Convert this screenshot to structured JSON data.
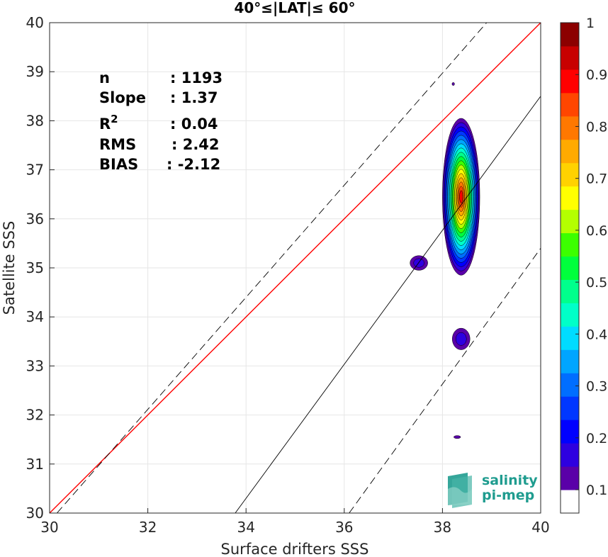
{
  "chart_data": {
    "type": "contour-density",
    "title": "40°≤|LAT|≤ 60°",
    "xlabel": "Surface drifters SSS",
    "ylabel": "Satellite SSS",
    "xlim": [
      30,
      40
    ],
    "ylim": [
      30,
      40
    ],
    "x_ticks": [
      "30",
      "32",
      "34",
      "36",
      "38",
      "40"
    ],
    "y_ticks": [
      "30",
      "31",
      "32",
      "33",
      "34",
      "35",
      "36",
      "37",
      "38",
      "39",
      "40"
    ],
    "grid": true,
    "stats": [
      {
        "label": "n",
        "value": ": 1193"
      },
      {
        "label": "Slope",
        "value": ": 1.37"
      },
      {
        "label": "R",
        "sup": "2",
        "value": ": 0.04"
      },
      {
        "label": "RMS",
        "value": ": 2.42"
      },
      {
        "label": "BIAS",
        "value": ": -2.12"
      }
    ],
    "reference_lines": [
      {
        "name": "1:1",
        "color": "#ff0000",
        "style": "solid",
        "points": [
          [
            30,
            30
          ],
          [
            40,
            40
          ]
        ]
      },
      {
        "name": "fit",
        "color": "#000000",
        "style": "solid",
        "points": [
          [
            33.78,
            30
          ],
          [
            40,
            38.5
          ]
        ]
      },
      {
        "name": "upper",
        "color": "#000000",
        "style": "dashed",
        "points": [
          [
            30.15,
            30
          ],
          [
            38.9,
            40
          ]
        ]
      },
      {
        "name": "lower",
        "color": "#000000",
        "style": "dashed",
        "points": [
          [
            36.1,
            30
          ],
          [
            40,
            35.4
          ]
        ]
      }
    ],
    "density_blobs": [
      {
        "cx": 38.38,
        "cy": 36.45,
        "rx": 0.38,
        "ry": 1.6
      },
      {
        "cx": 37.52,
        "cy": 35.1,
        "rx": 0.18,
        "ry": 0.15
      },
      {
        "cx": 38.38,
        "cy": 33.55,
        "rx": 0.18,
        "ry": 0.22
      },
      {
        "cx": 38.3,
        "cy": 31.55,
        "rx": 0.07,
        "ry": 0.03
      },
      {
        "cx": 38.22,
        "cy": 38.75,
        "rx": 0.025,
        "ry": 0.03
      }
    ],
    "colorbar": {
      "ticks": [
        "0.1",
        "0.2",
        "0.3",
        "0.4",
        "0.5",
        "0.6",
        "0.7",
        "0.8",
        "0.9",
        "1"
      ],
      "colors": [
        "#ffffff",
        "#5a00a8",
        "#2e00e0",
        "#0000ff",
        "#0037ff",
        "#006eff",
        "#00a5ff",
        "#00dcff",
        "#00ffc8",
        "#00ff8c",
        "#00ff3c",
        "#3cff00",
        "#b4ff00",
        "#ffff00",
        "#ffd200",
        "#ffaa00",
        "#ff7800",
        "#ff4600",
        "#ff0000",
        "#c80000",
        "#8c0000"
      ]
    }
  },
  "logo": {
    "line1": "salinity",
    "line2": "pi-mep"
  }
}
